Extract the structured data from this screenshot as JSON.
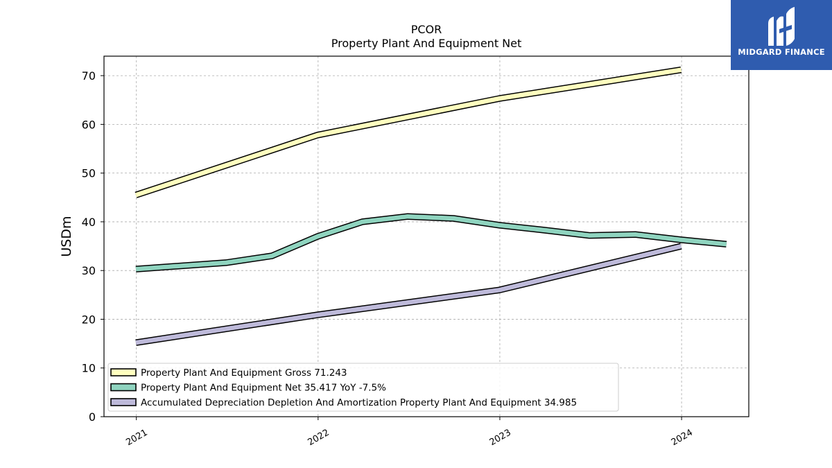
{
  "chart_data": {
    "type": "line",
    "title": "PCOR",
    "subtitle": "Property Plant And Equipment Net",
    "ylabel": "USDm",
    "xlabel": "",
    "ylim": [
      0,
      74
    ],
    "yticks": [
      0,
      10,
      20,
      30,
      40,
      50,
      60,
      70
    ],
    "xticks": [
      "2021",
      "2022",
      "2023",
      "2024"
    ],
    "grid": true,
    "legend_position": "lower-left",
    "series": [
      {
        "name": "Property Plant And Equipment Gross",
        "legend_label": "Property Plant And Equipment Gross  71.243",
        "color": "#ffffbf",
        "points": [
          [
            "2020-12-31",
            45.5
          ],
          [
            "2021-12-31",
            57.8
          ],
          [
            "2022-12-31",
            65.3
          ],
          [
            "2023-12-31",
            71.2
          ]
        ]
      },
      {
        "name": "Property Plant And Equipment Net",
        "legend_label": "Property Plant And Equipment Net  35.417 YoY -7.5%",
        "color": "#8fd4bf",
        "points": [
          [
            "2020-12-31",
            30.3
          ],
          [
            "2021-06-30",
            31.6
          ],
          [
            "2021-09-30",
            33.0
          ],
          [
            "2021-12-31",
            37.0
          ],
          [
            "2022-03-31",
            40.0
          ],
          [
            "2022-06-30",
            41.1
          ],
          [
            "2022-09-30",
            40.7
          ],
          [
            "2022-12-31",
            39.3
          ],
          [
            "2023-03-31",
            38.3
          ],
          [
            "2023-06-30",
            37.2
          ],
          [
            "2023-09-30",
            37.4
          ],
          [
            "2023-12-31",
            36.3
          ],
          [
            "2024-03-31",
            35.4
          ]
        ]
      },
      {
        "name": "Accumulated Depreciation Depletion And Amortization Property Plant And Equipment",
        "legend_label": "Accumulated Depreciation Depletion And Amortization Property Plant And Equipment  34.985",
        "color": "#bebada",
        "points": [
          [
            "2020-12-31",
            15.2
          ],
          [
            "2021-12-31",
            20.9
          ],
          [
            "2022-12-31",
            26.0
          ],
          [
            "2023-12-31",
            35.0
          ]
        ]
      }
    ]
  },
  "logo": {
    "text": "MIDGARD FINANCE"
  }
}
